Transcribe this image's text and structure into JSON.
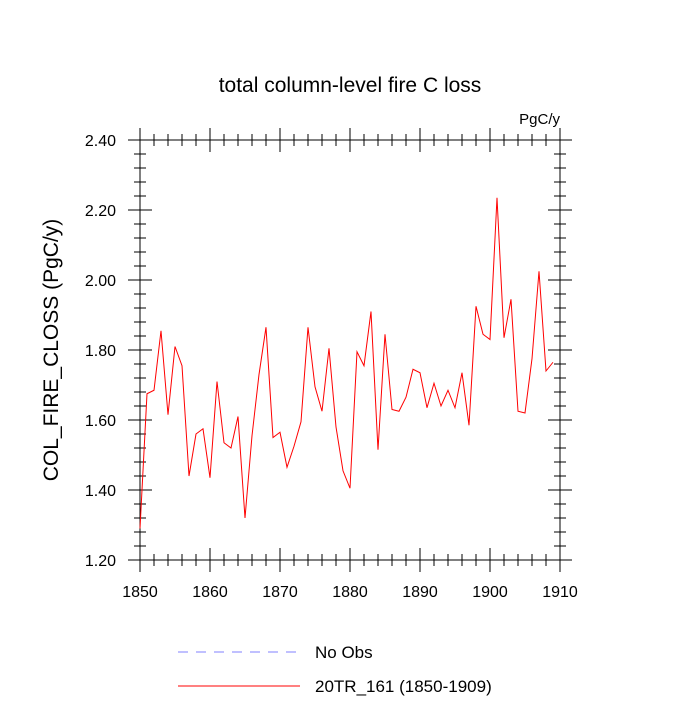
{
  "chart_data": {
    "type": "line",
    "title": "total column-level fire C loss",
    "units_label": "PgC/y",
    "xlabel": "",
    "ylabel": "COL_FIRE_CLOSS  (PgC/y)",
    "xlim": [
      1850,
      1910
    ],
    "ylim": [
      1.2,
      2.4
    ],
    "x_ticks": [
      1850,
      1860,
      1870,
      1880,
      1890,
      1900,
      1910
    ],
    "y_ticks": [
      "1.20",
      "1.40",
      "1.60",
      "1.80",
      "2.00",
      "2.20",
      "2.40"
    ],
    "y_tick_values": [
      1.2,
      1.4,
      1.6,
      1.8,
      2.0,
      2.2,
      2.4
    ],
    "grid": false,
    "legend_position": "bottom",
    "legend": [
      {
        "name": "No Obs",
        "color": "#8080ff",
        "style": "dashed"
      },
      {
        "name": "20TR_161 (1850-1909)",
        "color": "#ff0000",
        "style": "solid"
      }
    ],
    "series": [
      {
        "name": "20TR_161 (1850-1909)",
        "color": "#ff0000",
        "x": [
          1850,
          1851,
          1852,
          1853,
          1854,
          1855,
          1856,
          1857,
          1858,
          1859,
          1860,
          1861,
          1862,
          1863,
          1864,
          1865,
          1866,
          1867,
          1868,
          1869,
          1870,
          1871,
          1872,
          1873,
          1874,
          1875,
          1876,
          1877,
          1878,
          1879,
          1880,
          1881,
          1882,
          1883,
          1884,
          1885,
          1886,
          1887,
          1888,
          1889,
          1890,
          1891,
          1892,
          1893,
          1894,
          1895,
          1896,
          1897,
          1898,
          1899,
          1900,
          1901,
          1902,
          1903,
          1904,
          1905,
          1906,
          1907,
          1908,
          1909
        ],
        "values": [
          1.29,
          1.675,
          1.685,
          1.855,
          1.615,
          1.81,
          1.755,
          1.44,
          1.56,
          1.575,
          1.435,
          1.71,
          1.535,
          1.52,
          1.61,
          1.32,
          1.555,
          1.73,
          1.865,
          1.55,
          1.565,
          1.465,
          1.525,
          1.595,
          1.865,
          1.695,
          1.625,
          1.805,
          1.58,
          1.455,
          1.405,
          1.795,
          1.755,
          1.91,
          1.515,
          1.845,
          1.63,
          1.625,
          1.665,
          1.745,
          1.735,
          1.635,
          1.705,
          1.64,
          1.685,
          1.635,
          1.735,
          1.585,
          1.925,
          1.845,
          1.83,
          2.235,
          1.835,
          1.945,
          1.625,
          1.62,
          1.775,
          2.025,
          1.74,
          1.765
        ]
      }
    ]
  }
}
